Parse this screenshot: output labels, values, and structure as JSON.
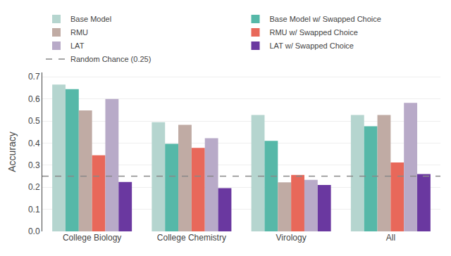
{
  "chart_data": {
    "type": "bar",
    "ylabel": "Accuracy",
    "categories": [
      "College Biology",
      "College Chemistry",
      "Virology",
      "All"
    ],
    "series": [
      {
        "name": "Base Model",
        "color": "#b5d5cf",
        "values": [
          0.665,
          0.495,
          0.527,
          0.527
        ]
      },
      {
        "name": "Base Model w/ Swapped Choice",
        "color": "#56b8a8",
        "values": [
          0.644,
          0.397,
          0.41,
          0.476
        ]
      },
      {
        "name": "RMU",
        "color": "#c0aba4",
        "values": [
          0.548,
          0.483,
          0.222,
          0.527
        ]
      },
      {
        "name": "RMU w/ Swapped Choice",
        "color": "#e8685a",
        "values": [
          0.345,
          0.378,
          0.256,
          0.312
        ]
      },
      {
        "name": "LAT",
        "color": "#b8aac8",
        "values": [
          0.6,
          0.422,
          0.233,
          0.582
        ]
      },
      {
        "name": "LAT w/ Swapped Choice",
        "color": "#6a38a0",
        "values": [
          0.224,
          0.196,
          0.21,
          0.26
        ]
      }
    ],
    "reference_lines": [
      {
        "name": "Random Chance (0.25)",
        "value": 0.25,
        "color": "#888888",
        "line_style": "dashed"
      }
    ],
    "ylim": [
      0.0,
      0.72
    ],
    "yticks": [
      {
        "value": 0.0,
        "label": "0.0"
      },
      0.1,
      0.2,
      0.3,
      0.4,
      0.5,
      0.6,
      0.7
    ],
    "grid": true,
    "legend": "top"
  }
}
